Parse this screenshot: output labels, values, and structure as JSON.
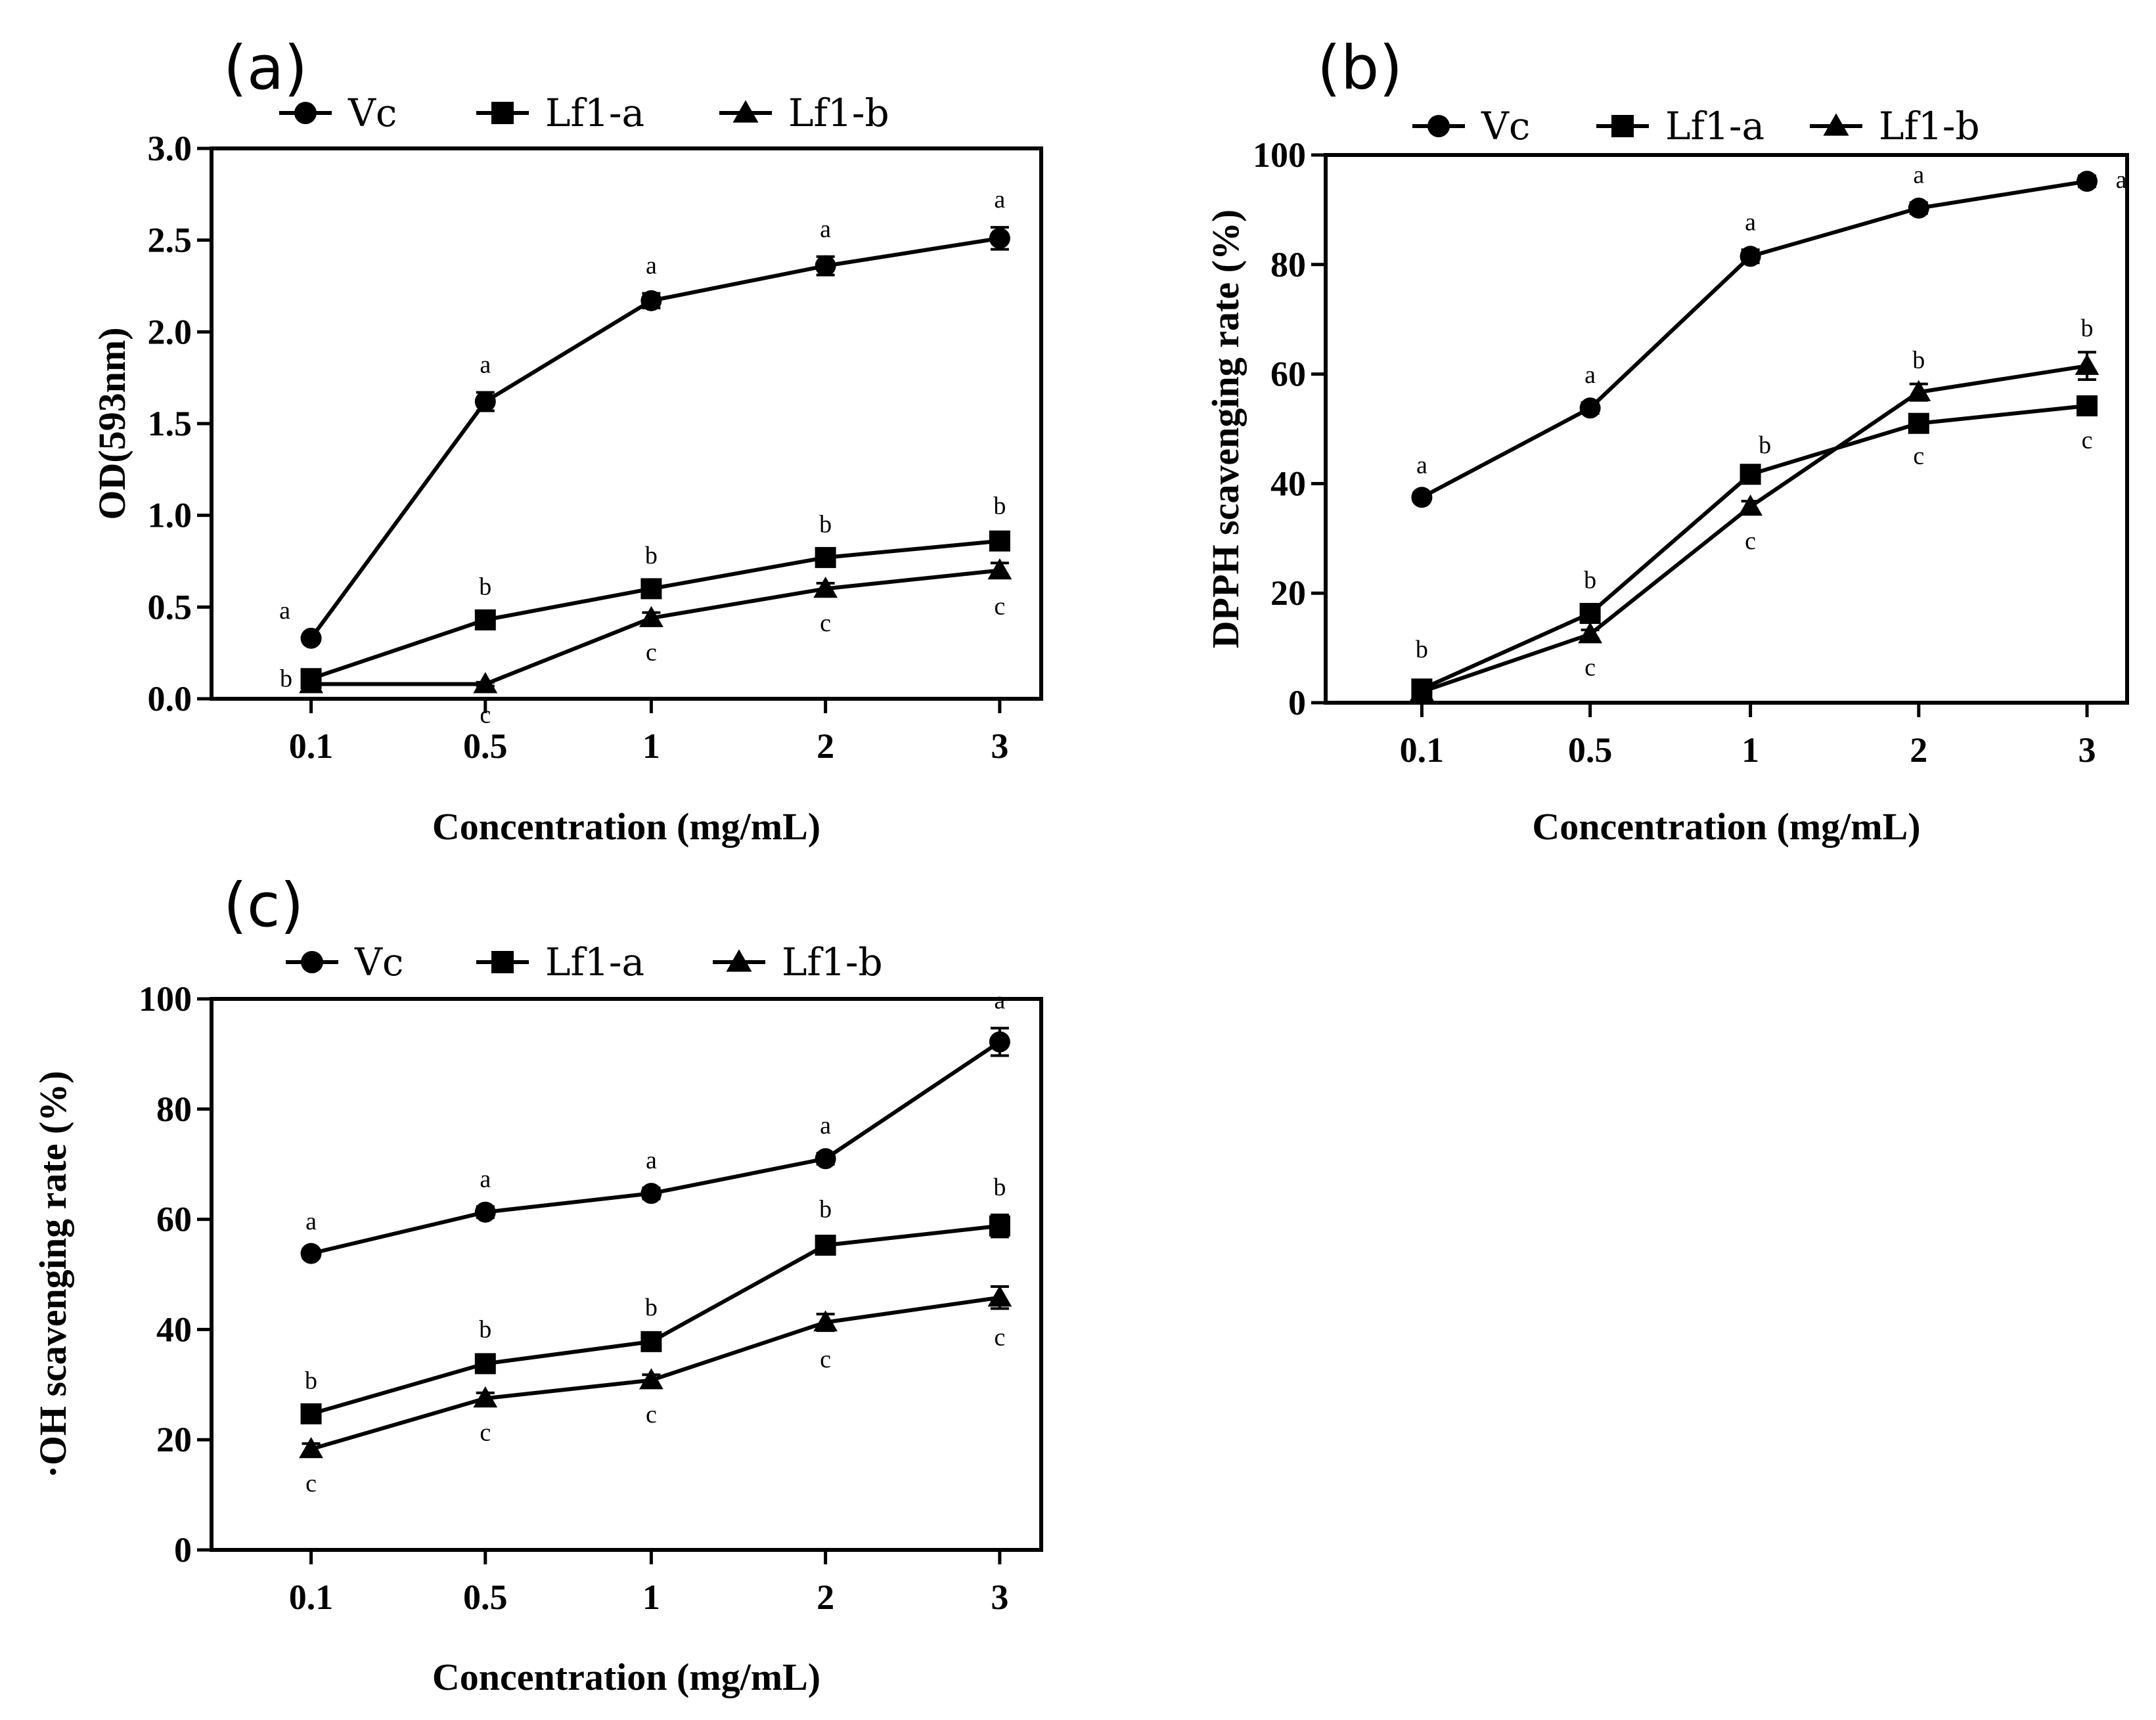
{
  "chart_data": [
    {
      "panel": "(a)",
      "type": "line",
      "categories": [
        "0.1",
        "0.5",
        "1",
        "2",
        "3"
      ],
      "xlabel": "Concentration (mg/mL)",
      "ylabel": "OD(593nm)",
      "ylim": [
        0,
        3.0
      ],
      "yticks": [
        "0.0",
        "0.5",
        "1.0",
        "1.5",
        "2.0",
        "2.5",
        "3.0"
      ],
      "legend_position": "top",
      "series": [
        {
          "name": "Vc",
          "marker": "circle",
          "values": [
            0.33,
            1.62,
            2.17,
            2.36,
            2.51
          ],
          "errors": [
            0.02,
            0.05,
            0.04,
            0.05,
            0.06
          ],
          "labels": [
            "a",
            "a",
            "a",
            "a",
            "a"
          ]
        },
        {
          "name": "Lf1-a",
          "marker": "square",
          "values": [
            0.11,
            0.43,
            0.6,
            0.77,
            0.86
          ],
          "errors": [
            0.02,
            0.03,
            0.03,
            0.03,
            0.04
          ],
          "labels": [
            "b",
            "b",
            "b",
            "b",
            "b"
          ]
        },
        {
          "name": "Lf1-b",
          "marker": "triangle",
          "values": [
            0.08,
            0.08,
            0.44,
            0.6,
            0.7
          ],
          "errors": [
            0.01,
            0.01,
            0.03,
            0.03,
            0.04
          ],
          "labels": [
            "",
            "c",
            "c",
            "c",
            "c"
          ]
        }
      ]
    },
    {
      "panel": "(b)",
      "type": "line",
      "categories": [
        "0.1",
        "0.5",
        "1",
        "2",
        "3"
      ],
      "xlabel": "Concentration (mg/mL)",
      "ylabel": "DPPH scavenging rate (%)",
      "ylim": [
        0,
        100
      ],
      "yticks": [
        "0",
        "20",
        "40",
        "60",
        "80",
        "100"
      ],
      "legend_position": "top",
      "series": [
        {
          "name": "Vc",
          "marker": "circle",
          "values": [
            37.5,
            53.8,
            81.5,
            90.3,
            95.2
          ],
          "errors": [
            0.8,
            1.0,
            1.2,
            1.0,
            1.0
          ],
          "labels": [
            "a",
            "a",
            "a",
            "a",
            "a"
          ]
        },
        {
          "name": "Lf1-a",
          "marker": "square",
          "values": [
            2.5,
            16.3,
            41.7,
            51.0,
            54.2
          ],
          "errors": [
            0.8,
            1.0,
            1.2,
            1.2,
            1.5
          ],
          "labels": [
            "b",
            "b",
            "b",
            "c",
            "c"
          ]
        },
        {
          "name": "Lf1-b",
          "marker": "triangle",
          "values": [
            2.0,
            12.5,
            35.8,
            56.7,
            61.5
          ],
          "errors": [
            0.5,
            0.8,
            1.0,
            1.5,
            2.5
          ],
          "labels": [
            "",
            "c",
            "c",
            "b",
            "b"
          ]
        }
      ]
    },
    {
      "panel": "(c)",
      "type": "line",
      "categories": [
        "0.1",
        "0.5",
        "1",
        "2",
        "3"
      ],
      "xlabel": "Concentration (mg/mL)",
      "ylabel": "·OH scavenging rate (%)",
      "ylim": [
        0,
        100
      ],
      "yticks": [
        "0",
        "20",
        "40",
        "60",
        "80",
        "100"
      ],
      "legend_position": "top",
      "series": [
        {
          "name": "Vc",
          "marker": "circle",
          "values": [
            53.8,
            61.3,
            64.7,
            71.0,
            92.2
          ],
          "errors": [
            0.8,
            1.0,
            1.0,
            1.0,
            2.5
          ],
          "labels": [
            "a",
            "a",
            "a",
            "a",
            "a"
          ]
        },
        {
          "name": "Lf1-a",
          "marker": "square",
          "values": [
            24.7,
            33.8,
            37.8,
            55.3,
            58.8
          ],
          "errors": [
            1.0,
            1.2,
            1.2,
            1.5,
            2.0
          ],
          "labels": [
            "b",
            "b",
            "b",
            "b",
            "b"
          ]
        },
        {
          "name": "Lf1-b",
          "marker": "triangle",
          "values": [
            18.3,
            27.5,
            30.8,
            41.3,
            45.8
          ],
          "errors": [
            1.0,
            1.0,
            1.0,
            1.5,
            2.0
          ],
          "labels": [
            "c",
            "c",
            "c",
            "c",
            "c"
          ]
        }
      ]
    }
  ]
}
